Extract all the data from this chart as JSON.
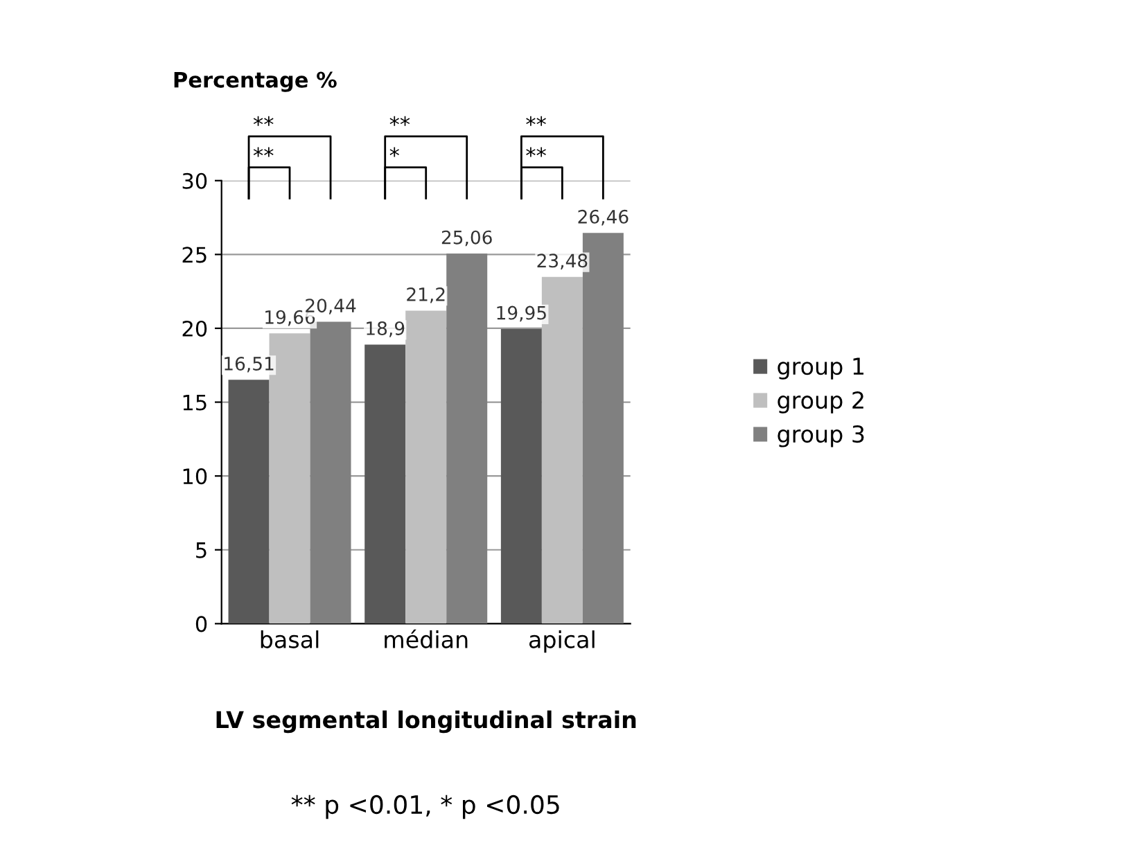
{
  "chart_data": {
    "type": "bar",
    "ylabel": "Percentage %",
    "xlabel": "LV segmental longitudinal strain",
    "categories": [
      "basal",
      "médian",
      "apical"
    ],
    "series": [
      {
        "name": "group 1",
        "color": "#595959",
        "values": [
          16.51,
          18.9,
          19.95
        ],
        "value_labels": [
          "16,51",
          "18,9",
          "19,95"
        ]
      },
      {
        "name": "group 2",
        "color": "#bfbfbf",
        "values": [
          19.66,
          21.2,
          23.48
        ],
        "value_labels": [
          "19,66",
          "21,2",
          "23,48"
        ]
      },
      {
        "name": "group 3",
        "color": "#808080",
        "values": [
          20.44,
          25.06,
          26.46
        ],
        "value_labels": [
          "20,44",
          "25,06",
          "26,46"
        ]
      }
    ],
    "ylim": [
      0,
      30
    ],
    "yticks": [
      0,
      5,
      10,
      15,
      20,
      25,
      30
    ],
    "grid": "y",
    "legend": "right",
    "annotations": [
      "**",
      "**",
      "**",
      "*",
      "**",
      "**",
      "** p <0.01, * p <0.05"
    ]
  }
}
